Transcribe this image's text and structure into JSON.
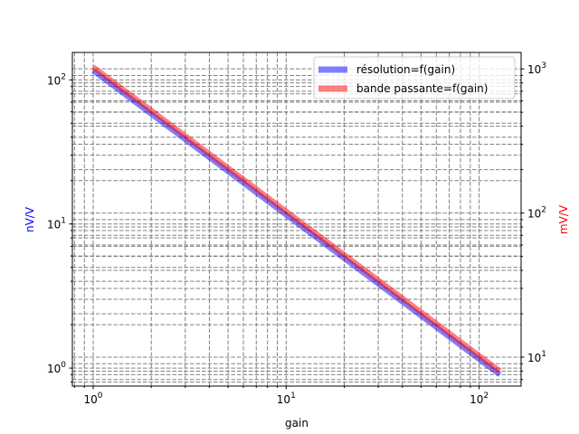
{
  "chart_data": {
    "type": "line",
    "xlabel": "gain",
    "ylabel_left": "nV/V",
    "ylabel_right": "mV/V",
    "xscale": "log",
    "yscale": "log",
    "xlim": [
      0.78,
      165
    ],
    "ylim_left": [
      0.75,
      155
    ],
    "ylim_right": [
      6.3,
      1300
    ],
    "grid": true,
    "legend_position": "upper right",
    "colors": {
      "left_axis_label": "#0000ff",
      "right_axis_label": "#ff0000"
    },
    "x_tick_labels": [
      {
        "value": 1,
        "base": "10",
        "exp": "0"
      },
      {
        "value": 10,
        "base": "10",
        "exp": "1"
      },
      {
        "value": 100,
        "base": "10",
        "exp": "2"
      }
    ],
    "y_left_tick_labels": [
      {
        "value": 1,
        "base": "10",
        "exp": "0"
      },
      {
        "value": 10,
        "base": "10",
        "exp": "1"
      },
      {
        "value": 100,
        "base": "10",
        "exp": "2"
      }
    ],
    "y_right_tick_labels": [
      {
        "value": 10,
        "base": "10",
        "exp": "1"
      },
      {
        "value": 100,
        "base": "10",
        "exp": "2"
      },
      {
        "value": 1000,
        "base": "10",
        "exp": "3"
      }
    ],
    "series": [
      {
        "name": "résolution=f(gain)",
        "axis": "left",
        "color": "#0000ff",
        "alpha": 0.5,
        "x": [
          1,
          128
        ],
        "y": [
          116,
          0.9
        ]
      },
      {
        "name": "bande passante=f(gain)",
        "axis": "right",
        "color": "#ff0000",
        "alpha": 0.5,
        "x": [
          1,
          128
        ],
        "y": [
          1030,
          8
        ]
      }
    ]
  }
}
